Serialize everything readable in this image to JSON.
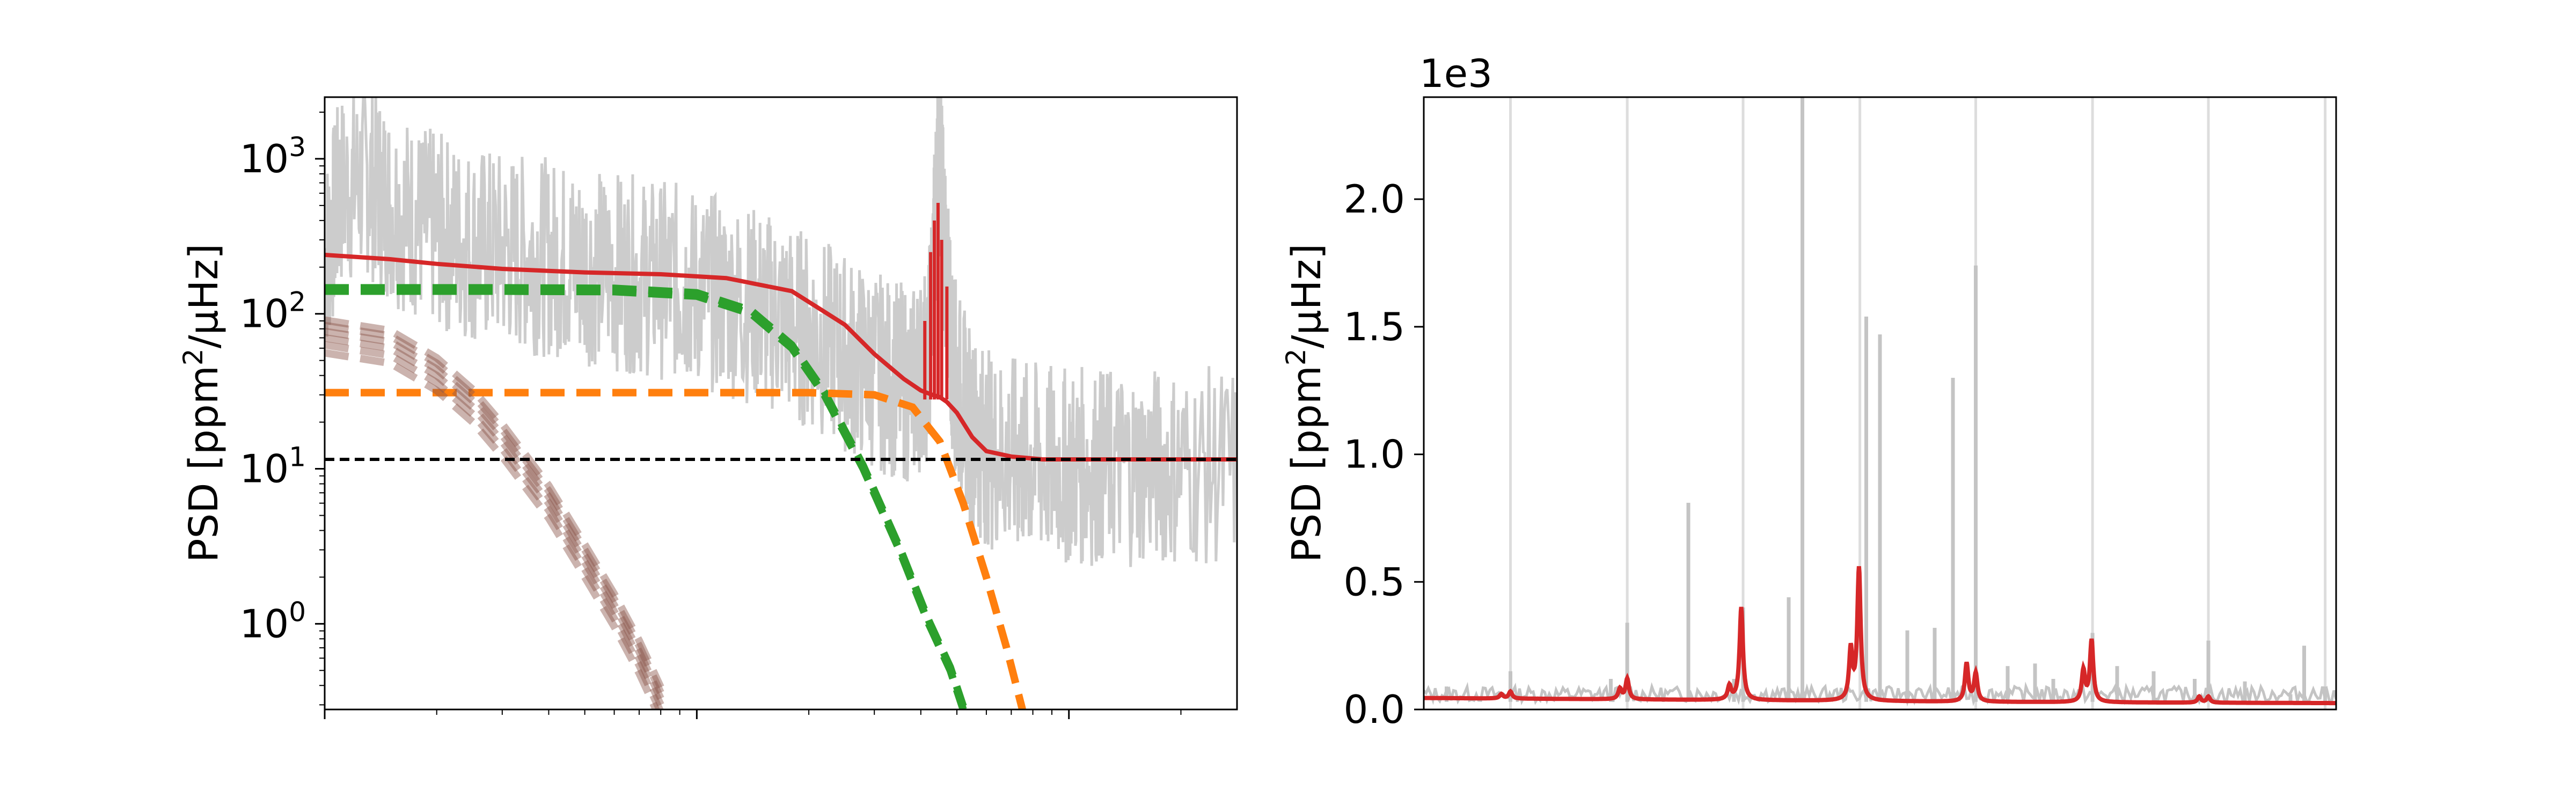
{
  "chart_data": [
    {
      "type": "line",
      "title": "",
      "xlabel": "",
      "ylabel": "PSD [ppm$^2/\\mu$Hz]",
      "ylabel_text": "PSD [ppm2/μHz]",
      "yscale": "log",
      "xscale": "log",
      "xlim": [
        1,
        283
      ],
      "ylim": [
        0.28,
        2500
      ],
      "yticks": [
        1,
        10,
        100,
        1000
      ],
      "ytick_labels": [
        {
          "base": "10",
          "exp": "0"
        },
        {
          "base": "10",
          "exp": "1"
        },
        {
          "base": "10",
          "exp": "2"
        },
        {
          "base": "10",
          "exp": "3"
        }
      ],
      "x_tick_labels_shown": false,
      "grid": false,
      "legend": "none",
      "colors": {
        "observed": "#cccccc",
        "model": "#d62728",
        "granulation_1": "#2ca02c",
        "granulation_2": "#ff7f0e",
        "slow_component": "#8c564b",
        "white_noise": "#000000"
      },
      "series": [
        {
          "role": "observed",
          "style": "solid-grey",
          "x": [
            1.0,
            1.1,
            1.3,
            1.5,
            1.8,
            2.1,
            2.5,
            3,
            3.6,
            4.3,
            5,
            6,
            7.2,
            8.6,
            10,
            12,
            14.5,
            17,
            20,
            24,
            28,
            33,
            38,
            42,
            44,
            45,
            46,
            48,
            50,
            55,
            60,
            70,
            80,
            95,
            110,
            130,
            160,
            200,
            283
          ],
          "y": [
            250,
            700,
            900,
            600,
            450,
            380,
            330,
            300,
            280,
            260,
            240,
            220,
            200,
            190,
            170,
            150,
            130,
            110,
            90,
            70,
            55,
            45,
            40,
            60,
            600,
            1500,
            400,
            80,
            40,
            20,
            16,
            14,
            13,
            12,
            12,
            12,
            12,
            12,
            12
          ]
        },
        {
          "role": "model",
          "style": "solid-red",
          "x": [
            1,
            1.5,
            2,
            3,
            5,
            8,
            12,
            18,
            25,
            30,
            36,
            40,
            43,
            45,
            47,
            50,
            55,
            60,
            70,
            85,
            100,
            150,
            283
          ],
          "y": [
            240,
            225,
            210,
            195,
            185,
            180,
            170,
            140,
            85,
            55,
            38,
            32,
            30,
            29,
            27,
            23,
            16,
            13,
            12,
            11.5,
            11.5,
            11.5,
            11.5
          ]
        },
        {
          "role": "granulation_1",
          "style": "dashed-green",
          "x": [
            1,
            3,
            6,
            10,
            14,
            18,
            22,
            28,
            35,
            42,
            48,
            52
          ],
          "y": [
            140,
            140,
            139,
            130,
            100,
            60,
            30,
            10,
            3,
            1.0,
            0.5,
            0.28
          ]
        },
        {
          "role": "granulation_2",
          "style": "dashed-orange",
          "x": [
            1,
            5,
            10,
            20,
            30,
            38,
            45,
            52,
            60,
            68,
            75
          ],
          "y": [
            31,
            31,
            31,
            31,
            30,
            25,
            15,
            6,
            2,
            0.7,
            0.28
          ]
        },
        {
          "role": "slow_component",
          "style": "dashed-brown",
          "x": [
            1,
            1.5,
            2,
            2.5,
            3,
            4,
            5,
            6,
            7,
            8
          ],
          "y": [
            70,
            60,
            40,
            25,
            15,
            6,
            2.5,
            1.2,
            0.6,
            0.3
          ]
        },
        {
          "role": "white_noise",
          "style": "dashed-black",
          "x": [
            1,
            283
          ],
          "y": [
            11.5,
            11.5
          ]
        }
      ]
    },
    {
      "type": "line",
      "title": "",
      "xlabel": "",
      "ylabel": "PSD [ppm$^2/\\mu$Hz]",
      "ylabel_text": "PSD [ppm2/μHz]",
      "yscale": "linear",
      "y_scale_factor_label": "1e3",
      "ylim": [
        0,
        2.4
      ],
      "yticks": [
        0.0,
        0.5,
        1.0,
        1.5,
        2.0
      ],
      "ytick_labels": [
        "0.0",
        "0.5",
        "1.0",
        "1.5",
        "2.0"
      ],
      "xlim": [
        0,
        100
      ],
      "x_tick_labels_shown": false,
      "grid": false,
      "legend": "none",
      "vertical_reference_lines_x": [
        9.5,
        22.3,
        35.0,
        47.8,
        60.5,
        73.3,
        86.0,
        98.8
      ],
      "colors": {
        "observed": "#c4c4c4",
        "model": "#d62728",
        "reference_lines": "#dddddd"
      },
      "observed_peaks": {
        "x": [
          2.5,
          9.5,
          20.5,
          22.3,
          29,
          34,
          35.0,
          40,
          41.5,
          48.5,
          50,
          53,
          56,
          58,
          60.5,
          64,
          67,
          69,
          73.3,
          76,
          80,
          84.5,
          86,
          90,
          95,
          96.5,
          98.8
        ],
        "y": [
          0.09,
          0.15,
          0.12,
          0.34,
          0.81,
          0.12,
          0.4,
          0.44,
          2.4,
          1.54,
          1.47,
          0.31,
          0.32,
          1.3,
          1.74,
          0.17,
          0.18,
          0.12,
          0.3,
          0.17,
          0.15,
          0.12,
          0.27,
          0.11,
          0.06,
          0.25,
          0.09
        ]
      },
      "model_baseline": {
        "x": [
          0,
          20,
          40,
          60,
          80,
          100
        ],
        "y": [
          0.045,
          0.04,
          0.035,
          0.03,
          0.027,
          0.025
        ]
      },
      "model_peaks": {
        "x": [
          8.5,
          9.5,
          21.5,
          22.3,
          33.5,
          34.8,
          46.8,
          47.7,
          59.5,
          60.5,
          72.3,
          73.2,
          85.0,
          86.0
        ],
        "y": [
          0.06,
          0.07,
          0.08,
          0.12,
          0.09,
          0.4,
          0.23,
          0.55,
          0.18,
          0.14,
          0.15,
          0.27,
          0.05,
          0.05
        ]
      }
    }
  ]
}
